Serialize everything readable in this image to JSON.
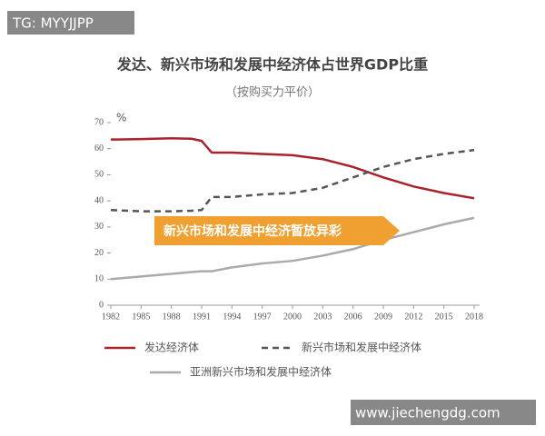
{
  "watermarks": [
    "TG: MYYJJPP",
    "www.jiechengdg.com"
  ],
  "chart_data": {
    "type": "line",
    "title": "发达、新兴市场和发展中经济体占世界GDP比重",
    "subtitle": "（按购买力平价）",
    "y_label": "%",
    "annotation": "新兴市场和发展中经济暂放异彩",
    "x": [
      1982,
      1985,
      1988,
      1990,
      1991,
      1992,
      1994,
      1997,
      2000,
      2003,
      2006,
      2009,
      2012,
      2015,
      2018
    ],
    "xlim": [
      1982,
      2018
    ],
    "xticks": [
      1982,
      1985,
      1988,
      1991,
      1994,
      1997,
      2000,
      2003,
      2006,
      2009,
      2012,
      2015,
      2018
    ],
    "ylim": [
      0,
      70
    ],
    "yticks": [
      0,
      10,
      20,
      30,
      40,
      50,
      60,
      70
    ],
    "series": [
      {
        "name": "发达经济体",
        "color": "#a8232c",
        "dash": "solid",
        "values": [
          63.5,
          63.7,
          64,
          63.8,
          63,
          58.5,
          58.5,
          58,
          57.5,
          56,
          53,
          49,
          45.5,
          43,
          41
        ]
      },
      {
        "name": "新兴市场和发展中经济体",
        "color": "#555555",
        "dash": "dashed",
        "values": [
          36.5,
          36,
          36,
          36.2,
          36.5,
          41.5,
          41.5,
          42.5,
          43,
          45,
          49,
          53,
          56,
          58,
          59.5
        ]
      },
      {
        "name": "亚洲新兴市场和发展中经济体",
        "color": "#aaaaaa",
        "dash": "solid",
        "values": [
          10,
          11,
          12,
          12.7,
          13,
          13,
          14.5,
          16,
          17,
          19,
          21.5,
          25,
          28,
          31,
          33.5
        ]
      }
    ]
  }
}
